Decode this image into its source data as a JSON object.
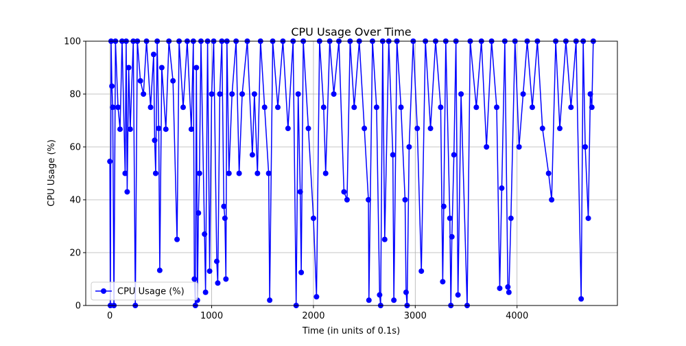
{
  "chart_data": {
    "type": "line",
    "title": "CPU Usage Over Time",
    "x_label": "Time (in units of 0.1s)",
    "y_label": "CPU Usage (%)",
    "x": [
      0,
      5,
      12,
      20,
      28,
      40,
      55,
      80,
      100,
      120,
      150,
      160,
      170,
      185,
      200,
      230,
      250,
      270,
      300,
      330,
      360,
      400,
      430,
      440,
      450,
      465,
      480,
      490,
      510,
      550,
      580,
      620,
      660,
      680,
      720,
      760,
      800,
      820,
      830,
      840,
      850,
      860,
      870,
      880,
      895,
      930,
      940,
      960,
      980,
      1000,
      1020,
      1050,
      1060,
      1080,
      1100,
      1120,
      1130,
      1140,
      1150,
      1170,
      1200,
      1240,
      1270,
      1300,
      1350,
      1400,
      1420,
      1450,
      1480,
      1520,
      1560,
      1570,
      1600,
      1650,
      1700,
      1750,
      1800,
      1830,
      1850,
      1870,
      1880,
      1900,
      1950,
      2000,
      2030,
      2060,
      2100,
      2120,
      2160,
      2200,
      2250,
      2300,
      2330,
      2360,
      2400,
      2450,
      2500,
      2540,
      2545,
      2580,
      2620,
      2650,
      2660,
      2680,
      2700,
      2740,
      2780,
      2790,
      2820,
      2860,
      2900,
      2910,
      2920,
      2940,
      2980,
      3020,
      3060,
      3100,
      3150,
      3200,
      3250,
      3270,
      3280,
      3300,
      3340,
      3350,
      3360,
      3380,
      3400,
      3420,
      3450,
      3510,
      3540,
      3600,
      3650,
      3700,
      3750,
      3800,
      3830,
      3850,
      3880,
      3910,
      3920,
      3940,
      3980,
      4020,
      4060,
      4100,
      4150,
      4200,
      4250,
      4310,
      4340,
      4380,
      4420,
      4480,
      4530,
      4580,
      4630,
      4650,
      4670,
      4700,
      4720,
      4735,
      4749
    ],
    "series": [
      {
        "name": "CPU Usage (%)",
        "color": "#0000ff",
        "values": [
          54.5,
          0,
          100,
          83,
          75,
          0,
          100,
          75,
          66.7,
          100,
          50,
          100,
          43,
          90,
          66.7,
          100,
          0,
          100,
          85,
          80,
          100,
          75,
          95,
          62.5,
          50,
          100,
          67,
          13.3,
          90,
          66.7,
          100,
          85,
          25,
          100,
          75,
          100,
          66.7,
          100,
          10,
          0,
          90,
          2,
          35,
          50,
          100,
          27,
          5,
          100,
          13,
          80,
          100,
          16.7,
          8.5,
          80,
          100,
          37.5,
          33,
          10,
          100,
          50,
          80,
          100,
          50,
          80,
          100,
          57,
          80,
          50,
          100,
          75,
          50,
          2,
          100,
          75,
          100,
          67,
          100,
          0,
          80,
          43,
          12.5,
          100,
          67,
          33,
          3.3,
          100,
          75,
          50,
          100,
          80,
          100,
          43,
          40,
          100,
          75,
          100,
          67,
          40,
          2,
          100,
          75,
          4,
          0,
          100,
          25,
          100,
          57,
          2,
          100,
          75,
          40,
          5,
          0,
          60,
          100,
          67,
          13,
          100,
          67,
          100,
          75,
          9,
          37.5,
          100,
          33,
          0,
          26,
          57,
          100,
          4,
          80,
          0,
          100,
          75,
          100,
          60,
          100,
          75,
          6.5,
          44.4,
          100,
          7,
          5,
          33,
          100,
          60,
          80,
          100,
          75,
          100,
          67,
          50,
          40,
          100,
          67,
          100,
          75,
          100,
          2.5,
          100,
          60,
          33,
          80,
          75,
          100
        ]
      }
    ],
    "xlim": [
      -237,
      4986
    ],
    "ylim": [
      0,
      100
    ],
    "xticks": [
      0,
      1000,
      2000,
      3000,
      4000
    ],
    "yticks": [
      0,
      20,
      40,
      60,
      80,
      100
    ],
    "grid": true,
    "legend_position": "lower left"
  }
}
